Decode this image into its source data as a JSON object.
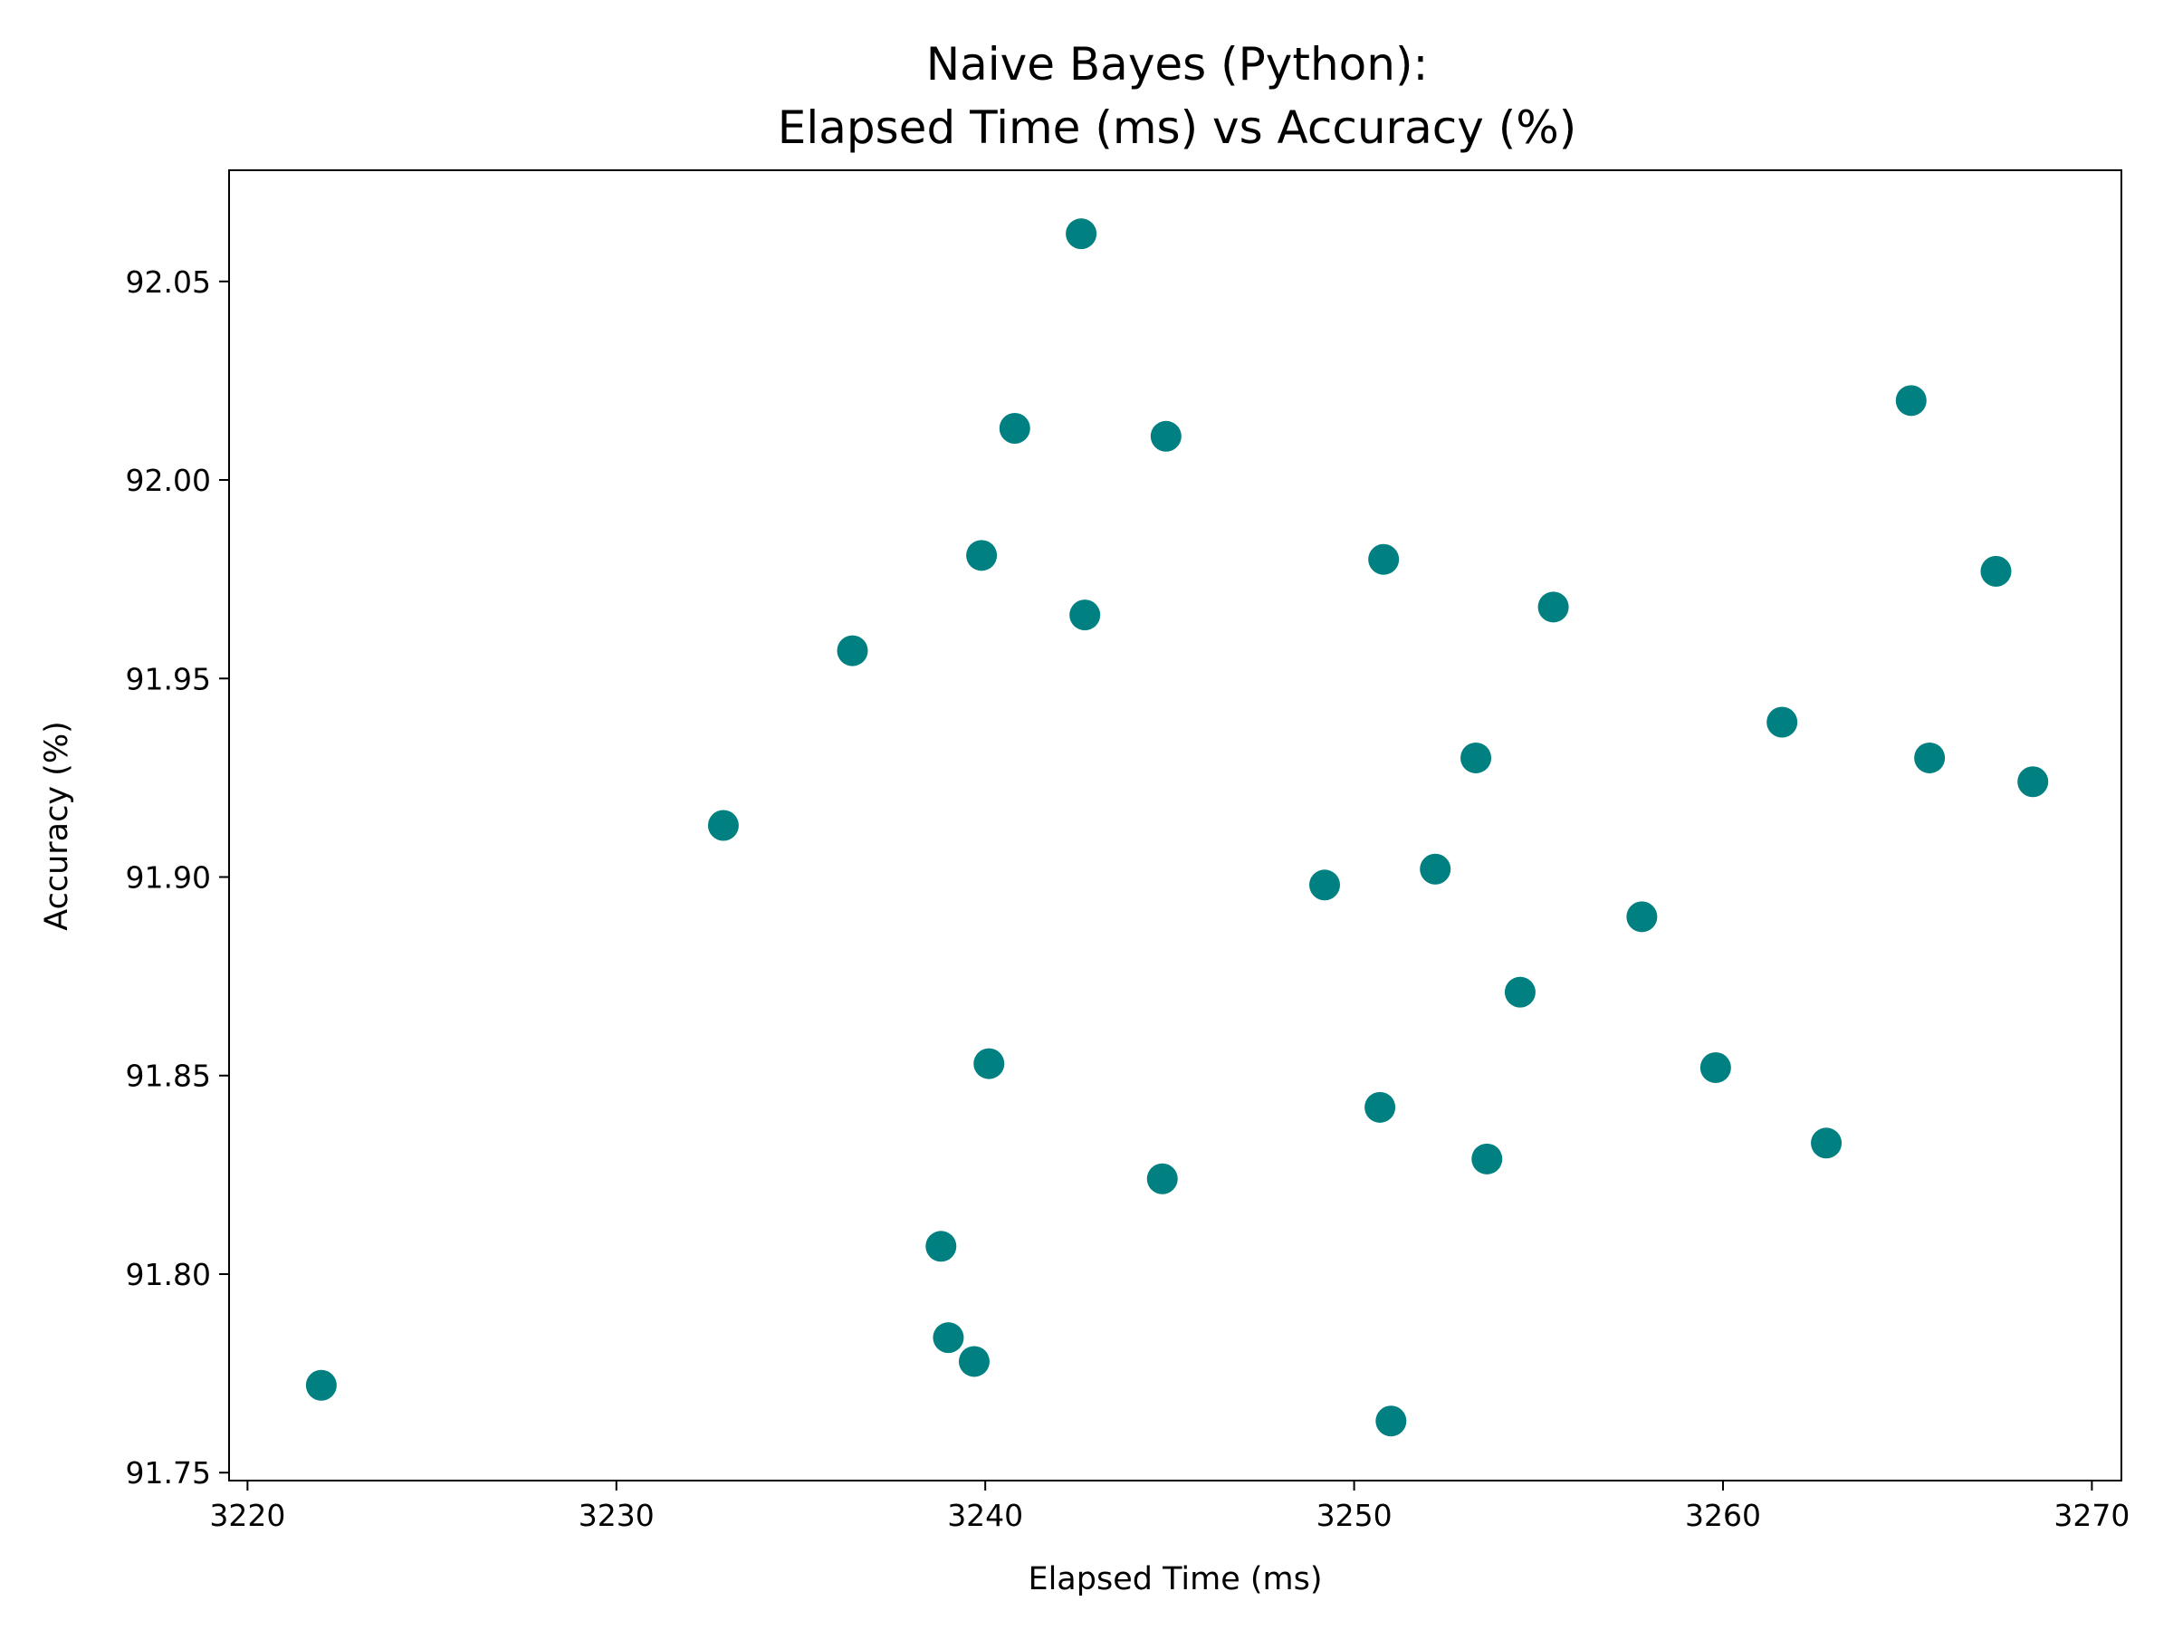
{
  "chart_data": {
    "type": "scatter",
    "title_lines": [
      "Naive Bayes (Python):",
      "Elapsed Time (ms) vs Accuracy (%)"
    ],
    "xlabel": "Elapsed Time (ms)",
    "ylabel": "Accuracy (%)",
    "xlim": [
      3219.5,
      3270.8
    ],
    "ylim": [
      91.748,
      92.078
    ],
    "xticks": [
      3220,
      3230,
      3240,
      3250,
      3260,
      3270
    ],
    "xtick_labels": [
      "3220",
      "3230",
      "3240",
      "3250",
      "3260",
      "3270"
    ],
    "yticks": [
      91.75,
      91.8,
      91.85,
      91.9,
      91.95,
      92.0,
      92.05
    ],
    "ytick_labels": [
      "91.75",
      "91.80",
      "91.85",
      "91.90",
      "91.95",
      "92.00",
      "92.05"
    ],
    "grid": false,
    "color": "#008080",
    "points": [
      {
        "x": 3222.0,
        "y": 91.772
      },
      {
        "x": 3232.9,
        "y": 91.913
      },
      {
        "x": 3236.4,
        "y": 91.957
      },
      {
        "x": 3238.8,
        "y": 91.807
      },
      {
        "x": 3239.0,
        "y": 91.784
      },
      {
        "x": 3239.7,
        "y": 91.778
      },
      {
        "x": 3239.9,
        "y": 91.981
      },
      {
        "x": 3240.1,
        "y": 91.853
      },
      {
        "x": 3240.8,
        "y": 92.013
      },
      {
        "x": 3242.6,
        "y": 92.062
      },
      {
        "x": 3242.7,
        "y": 91.966
      },
      {
        "x": 3244.8,
        "y": 91.824
      },
      {
        "x": 3244.9,
        "y": 92.011
      },
      {
        "x": 3249.2,
        "y": 91.898
      },
      {
        "x": 3250.7,
        "y": 91.842
      },
      {
        "x": 3250.8,
        "y": 91.98
      },
      {
        "x": 3251.0,
        "y": 91.763
      },
      {
        "x": 3252.2,
        "y": 91.902
      },
      {
        "x": 3253.3,
        "y": 91.93
      },
      {
        "x": 3253.6,
        "y": 91.829
      },
      {
        "x": 3254.5,
        "y": 91.871
      },
      {
        "x": 3255.4,
        "y": 91.968
      },
      {
        "x": 3257.8,
        "y": 91.89
      },
      {
        "x": 3259.8,
        "y": 91.852
      },
      {
        "x": 3261.6,
        "y": 91.939
      },
      {
        "x": 3262.8,
        "y": 91.833
      },
      {
        "x": 3265.1,
        "y": 92.02
      },
      {
        "x": 3265.6,
        "y": 91.93
      },
      {
        "x": 3267.4,
        "y": 91.977
      },
      {
        "x": 3268.4,
        "y": 91.924
      }
    ]
  }
}
